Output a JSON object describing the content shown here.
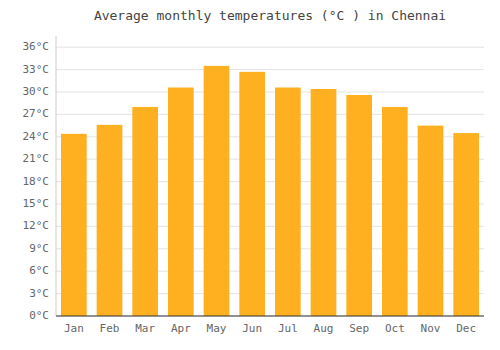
{
  "chart_data": {
    "type": "bar",
    "title": "Average monthly temperatures (°C ) in Chennai",
    "categories": [
      "Jan",
      "Feb",
      "Mar",
      "Apr",
      "May",
      "Jun",
      "Jul",
      "Aug",
      "Sep",
      "Oct",
      "Nov",
      "Dec"
    ],
    "values": [
      24.4,
      25.6,
      28.0,
      30.6,
      33.5,
      32.7,
      30.6,
      30.4,
      29.6,
      28.0,
      25.5,
      24.5
    ],
    "color": "#FFB020",
    "ylim": [
      0,
      37.5
    ],
    "yticks": [
      {
        "value": 0,
        "label": "0°C"
      },
      {
        "value": 3,
        "label": "3°C"
      },
      {
        "value": 6,
        "label": "6°C"
      },
      {
        "value": 9,
        "label": "9°C"
      },
      {
        "value": 12,
        "label": "12°C"
      },
      {
        "value": 15,
        "label": "15°C"
      },
      {
        "value": 18,
        "label": "18°C"
      },
      {
        "value": 21,
        "label": "21°C"
      },
      {
        "value": 24,
        "label": "24°C"
      },
      {
        "value": 27,
        "label": "27°C"
      },
      {
        "value": 30,
        "label": "30°C"
      },
      {
        "value": 33,
        "label": "33°C"
      },
      {
        "value": 36,
        "label": "36°C"
      }
    ],
    "grid": true
  }
}
